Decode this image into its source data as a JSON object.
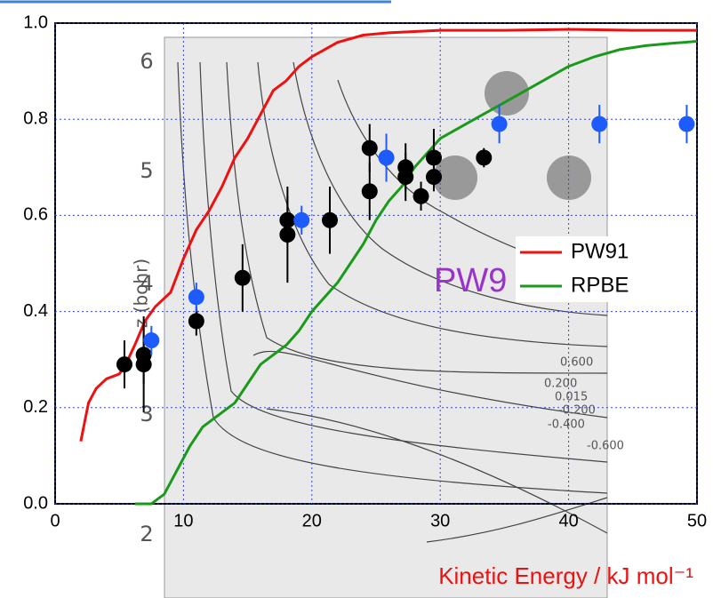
{
  "chart_data": {
    "type": "scatter",
    "xlabel": "Kinetic Energy / kJ mol⁻¹",
    "annotation": "PW9",
    "xlim": [
      0,
      50
    ],
    "ylim": [
      0,
      1
    ],
    "xticks": [
      0,
      10,
      20,
      30,
      40,
      50
    ],
    "yticks": [
      {
        "value": 0,
        "label": "0.0"
      },
      0.2,
      0.4,
      0.6,
      0.8,
      {
        "value": 1,
        "label": "1.0"
      }
    ],
    "grid": true,
    "legend": "right",
    "series": [
      {
        "name": "PW91",
        "color": "#ee1111",
        "kind": "line",
        "x": [
          2.0,
          2.6,
          3.2,
          4,
          5,
          5.5,
          6.2,
          7,
          7.8,
          9,
          10,
          11,
          12,
          13,
          14,
          15,
          16,
          17,
          18,
          19,
          20,
          22,
          24,
          26,
          30,
          35,
          40,
          45,
          50
        ],
        "values": [
          0.13,
          0.21,
          0.24,
          0.26,
          0.27,
          0.29,
          0.33,
          0.38,
          0.41,
          0.44,
          0.51,
          0.57,
          0.61,
          0.66,
          0.72,
          0.76,
          0.81,
          0.86,
          0.88,
          0.91,
          0.93,
          0.96,
          0.975,
          0.98,
          0.985,
          0.985,
          0.987,
          0.985,
          0.985
        ]
      },
      {
        "name": "RPBE",
        "color": "#1a9a1a",
        "kind": "line",
        "x": [
          6.2,
          7.5,
          8.5,
          9.5,
          10.5,
          11.5,
          13,
          14,
          15,
          16,
          17,
          18,
          19,
          20,
          21,
          22,
          23,
          24,
          25,
          26,
          27,
          28,
          29,
          30,
          32,
          34,
          36,
          38,
          40,
          42,
          44,
          46,
          48,
          50
        ],
        "values": [
          0,
          0,
          0.02,
          0.07,
          0.12,
          0.16,
          0.19,
          0.21,
          0.25,
          0.29,
          0.31,
          0.33,
          0.36,
          0.4,
          0.43,
          0.46,
          0.5,
          0.54,
          0.59,
          0.63,
          0.66,
          0.7,
          0.73,
          0.76,
          0.79,
          0.82,
          0.85,
          0.88,
          0.91,
          0.93,
          0.945,
          0.953,
          0.958,
          0.962
        ]
      },
      {
        "color": "#000000",
        "kind": "points",
        "x": [
          5.4,
          6.9,
          6.9,
          11.0,
          14.6,
          18.1,
          18.1,
          21.4,
          24.5,
          24.5,
          27.3,
          27.3,
          28.5,
          29.5,
          29.5,
          33.4
        ],
        "values": [
          0.29,
          0.31,
          0.29,
          0.38,
          0.47,
          0.59,
          0.56,
          0.59,
          0.74,
          0.65,
          0.7,
          0.68,
          0.64,
          0.72,
          0.68,
          0.72
        ],
        "errors": [
          0.05,
          0.06,
          0.1,
          0.03,
          0.07,
          0.05,
          0.1,
          0.07,
          0.05,
          0.06,
          0.05,
          0.05,
          0.03,
          0.06,
          0.03,
          0.02
        ]
      },
      {
        "color": "#1e5bff",
        "kind": "points",
        "x": [
          7.5,
          11.0,
          19.2,
          25.8,
          34.6,
          42.4,
          49.2
        ],
        "values": [
          0.34,
          0.43,
          0.59,
          0.72,
          0.79,
          0.79,
          0.79
        ],
        "errors": [
          0.03,
          0.03,
          0.03,
          0.05,
          0.04,
          0.04,
          0.04
        ]
      }
    ]
  },
  "inset": {
    "axis_label": "z (bohr)",
    "ticks": [
      "6",
      "5",
      "4",
      "3",
      "2"
    ],
    "contour_labels": [
      "0.600",
      "0.200",
      "0.015",
      "-0.200",
      "-0.400",
      "-0.600"
    ]
  }
}
